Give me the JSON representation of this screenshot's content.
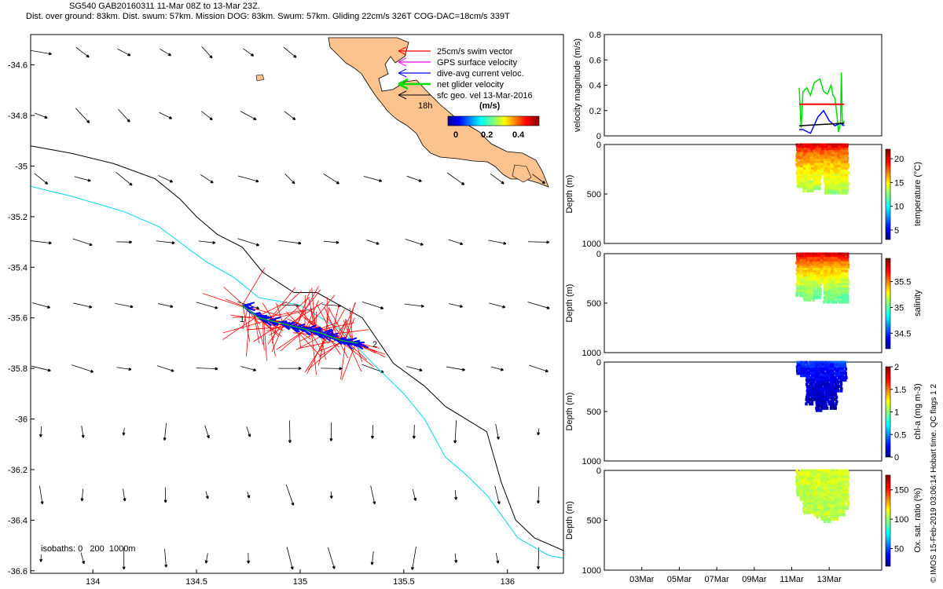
{
  "header": {
    "line1": "SG540 GAB20160311 11-Mar 08Z to 13-Mar 23Z.",
    "line2": "Dist. over ground: 83km. Dist. swum: 57km. Mission DOG: 83km. Swum: 57km. Gliding 22cm/s 326T COG-DAC=18cm/s 339T"
  },
  "footer_note": "© IMOS 15-Feb-2019 03:06:14 Hobart time. QC flags 1  2",
  "colors": {
    "swim": "#ff0000",
    "gps": "#ff00ff",
    "dac": "#0000ff",
    "net": "#00dd00",
    "geo": "#000000",
    "land": "#fdc38f",
    "isobath200": "#00d8e8",
    "isobath1000": "#000000"
  },
  "map": {
    "legend": [
      {
        "label": "25cm/s swim vector",
        "color": "#ff0000"
      },
      {
        "label": "GPS surface velocity",
        "color": "#ff00ff"
      },
      {
        "label": "dive-avg current veloc.",
        "color": "#0000ff"
      },
      {
        "label": "net glider velocity",
        "color": "#00dd00"
      },
      {
        "label": "sfc geo. vel 13-Mar-2016",
        "color": "#000000"
      }
    ],
    "time_label": "18h",
    "colorbar": {
      "title": "(m/s)",
      "ticks": [
        "0",
        "0.2",
        "0.4"
      ]
    },
    "isobaths_label": "isobaths: 0   200  1000m",
    "waypoint_labels": [
      "1",
      "2"
    ]
  },
  "chart_data": [
    {
      "type": "map",
      "xlim": [
        133.7,
        136.27
      ],
      "ylim": [
        -36.61,
        -34.48
      ],
      "xticks": [
        134,
        134.5,
        135,
        135.5,
        136
      ],
      "xtick_labels": [
        "134",
        "134.5",
        "135",
        "135.5",
        "136"
      ],
      "yticks": [
        -34.6,
        -34.8,
        -35,
        -35.2,
        -35.4,
        -35.6,
        -35.8,
        -36,
        -36.2,
        -36.4,
        -36.6
      ],
      "ytick_labels": [
        "-34.6",
        "-34.8",
        "-35",
        "-35.2",
        "-35.4",
        "-35.6",
        "-35.8",
        "-36",
        "-36.2",
        "-36.4",
        "-36.6"
      ],
      "glider_track": {
        "start": [
          134.72,
          -35.55
        ],
        "end": [
          135.28,
          -35.7
        ],
        "path": [
          [
            134.72,
            -35.55
          ],
          [
            134.8,
            -35.6
          ],
          [
            134.9,
            -35.62
          ],
          [
            135.0,
            -35.64
          ],
          [
            135.1,
            -35.66
          ],
          [
            135.2,
            -35.69
          ],
          [
            135.28,
            -35.7
          ]
        ]
      },
      "isobath_1000": [
        [
          133.7,
          -34.92
        ],
        [
          133.9,
          -34.95
        ],
        [
          134.1,
          -34.99
        ],
        [
          134.3,
          -35.05
        ],
        [
          134.42,
          -35.13
        ],
        [
          134.5,
          -35.2
        ],
        [
          134.6,
          -35.27
        ],
        [
          134.72,
          -35.32
        ],
        [
          134.82,
          -35.42
        ],
        [
          134.97,
          -35.5
        ],
        [
          135.08,
          -35.5
        ],
        [
          135.3,
          -35.6
        ],
        [
          135.45,
          -35.78
        ],
        [
          135.6,
          -35.87
        ],
        [
          135.7,
          -35.95
        ],
        [
          135.9,
          -36.05
        ],
        [
          135.97,
          -36.25
        ],
        [
          136.04,
          -36.4
        ],
        [
          136.13,
          -36.47
        ],
        [
          136.27,
          -36.52
        ]
      ],
      "isobath_200": [
        [
          133.7,
          -35.08
        ],
        [
          133.9,
          -35.12
        ],
        [
          134.15,
          -35.18
        ],
        [
          134.32,
          -35.24
        ],
        [
          134.45,
          -35.32
        ],
        [
          134.55,
          -35.38
        ],
        [
          134.68,
          -35.44
        ],
        [
          134.8,
          -35.52
        ],
        [
          135.0,
          -35.55
        ],
        [
          135.2,
          -35.65
        ],
        [
          135.35,
          -35.78
        ],
        [
          135.5,
          -35.9
        ],
        [
          135.6,
          -36.0
        ],
        [
          135.7,
          -36.15
        ],
        [
          135.8,
          -36.22
        ],
        [
          135.9,
          -36.3
        ],
        [
          136.05,
          -36.47
        ],
        [
          136.2,
          -36.54
        ],
        [
          136.27,
          -36.55
        ]
      ]
    },
    {
      "type": "line",
      "ylabel": "velocity magnitude (m/s)",
      "ylim": [
        0,
        0.8
      ],
      "yticks": [
        0,
        0.2,
        0.4,
        0.6,
        0.8
      ],
      "ytick_labels": [
        "0",
        "0.2",
        "0.4",
        "0.6",
        "0.8"
      ],
      "xlim": [
        1,
        15.8
      ],
      "series": [
        {
          "color": "#00dd00",
          "x": [
            11.4,
            11.5,
            11.6,
            11.8,
            12.0,
            12.2,
            12.5,
            12.7,
            12.9,
            13.1,
            13.2,
            13.3,
            13.4,
            13.5,
            13.6,
            13.65,
            13.7,
            13.8
          ],
          "values": [
            0.38,
            0.06,
            0.35,
            0.38,
            0.32,
            0.42,
            0.45,
            0.35,
            0.33,
            0.4,
            0.32,
            0.3,
            0.18,
            0.03,
            0.1,
            0.5,
            0.08,
            0.12
          ]
        },
        {
          "color": "#ff0000",
          "x": [
            11.4,
            13.8
          ],
          "values": [
            0.25,
            0.25
          ]
        },
        {
          "color": "#0000ff",
          "x": [
            11.4,
            11.6,
            12.0,
            12.4,
            12.7,
            13.0,
            13.3,
            13.6,
            13.8
          ],
          "values": [
            0.05,
            0.05,
            0.02,
            0.15,
            0.2,
            0.12,
            0.08,
            0.1,
            0.08
          ]
        },
        {
          "color": "#000000",
          "x": [
            11.4,
            13.8
          ],
          "values": [
            0.08,
            0.1
          ]
        }
      ]
    },
    {
      "type": "scatter",
      "ylabel": "Depth (m)",
      "ylim": [
        1000,
        0
      ],
      "yticks": [
        0,
        500,
        1000
      ],
      "ytick_labels": [
        "0",
        "500",
        "1000"
      ],
      "colorbar": {
        "label": "temperature (°C)",
        "range": [
          3,
          22
        ],
        "ticks": [
          5,
          10,
          15,
          20
        ],
        "tick_labels": [
          "5",
          "10",
          "15",
          "20"
        ]
      },
      "profiles": {
        "dives": 14,
        "x_start": 11.4,
        "x_end": 13.8,
        "max_depths": [
          430,
          430,
          480,
          470,
          330,
          460,
          300,
          300,
          510,
          480,
          500,
          460,
          490,
          500
        ],
        "surface_value": 21,
        "deep_value": 13
      }
    },
    {
      "type": "scatter",
      "ylabel": "Depth (m)",
      "ylim": [
        1000,
        0
      ],
      "yticks": [
        0,
        500,
        1000
      ],
      "ytick_labels": [
        "0",
        "500",
        "1000"
      ],
      "colorbar": {
        "label": "salinity",
        "range": [
          34.2,
          35.95
        ],
        "ticks": [
          34.5,
          35,
          35.5
        ],
        "tick_labels": [
          "34.5",
          "35",
          "35.5"
        ]
      },
      "profiles": {
        "dives": 14,
        "x_start": 11.4,
        "x_end": 13.8,
        "max_depths": [
          430,
          430,
          480,
          470,
          330,
          460,
          300,
          300,
          510,
          480,
          500,
          460,
          490,
          500
        ],
        "surface_value": 35.9,
        "deep_value": 35.0
      }
    },
    {
      "type": "scatter",
      "ylabel": "Depth (m)",
      "ylim": [
        1000,
        0
      ],
      "yticks": [
        0,
        500,
        1000
      ],
      "ytick_labels": [
        "0",
        "500",
        "1000"
      ],
      "colorbar": {
        "label": "chl-a (mg m-3)",
        "range": [
          0,
          2
        ],
        "ticks": [
          0,
          0.5,
          1,
          1.5,
          2
        ],
        "tick_labels": [
          "0",
          "0.5",
          "1",
          "1.5",
          "2"
        ]
      },
      "profiles": {
        "dives": 10,
        "x_start": 11.4,
        "x_end": 13.7,
        "max_depths": [
          120,
          150,
          430,
          400,
          500,
          480,
          430,
          480,
          300,
          200
        ],
        "surface_value": 0.4,
        "deep_value": 0.05
      }
    },
    {
      "type": "scatter",
      "ylabel": "Depth (m)",
      "ylim": [
        1000,
        0
      ],
      "yticks": [
        0,
        500,
        1000
      ],
      "ytick_labels": [
        "0",
        "500",
        "1000"
      ],
      "colorbar": {
        "label": "Ox. sat. ratio (%)",
        "range": [
          20,
          175
        ],
        "ticks": [
          50,
          100,
          150
        ],
        "tick_labels": [
          "50",
          "100",
          "150"
        ]
      },
      "profiles": {
        "dives": 14,
        "x_start": 11.4,
        "x_end": 13.8,
        "max_depths": [
          260,
          300,
          430,
          420,
          440,
          450,
          480,
          500,
          520,
          430,
          490,
          420,
          450,
          400
        ],
        "surface_value": 112,
        "deep_value": 105
      },
      "xticks": [
        3,
        5,
        7,
        9,
        11,
        13
      ],
      "xtick_labels": [
        "03Mar",
        "05Mar",
        "07Mar",
        "09Mar",
        "11Mar",
        "13Mar"
      ]
    }
  ]
}
